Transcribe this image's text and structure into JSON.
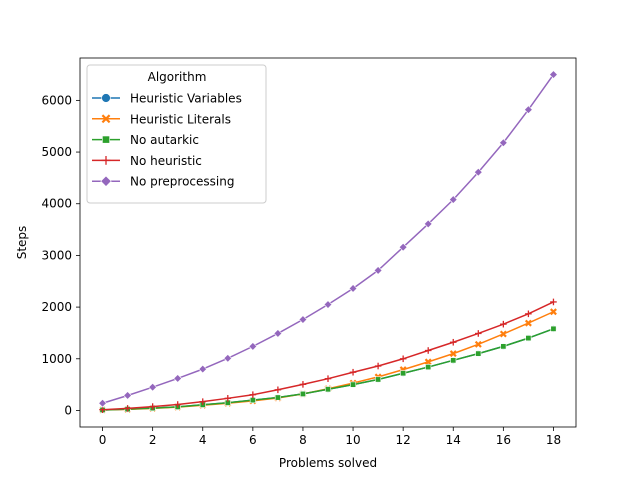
{
  "chart_data": {
    "type": "line",
    "title": "",
    "xlabel": "Problems solved",
    "ylabel": "Steps",
    "xlim": [
      -0.9,
      18.9
    ],
    "ylim": [
      -320,
      6820
    ],
    "xticks": [
      0,
      2,
      4,
      6,
      8,
      10,
      12,
      14,
      16,
      18
    ],
    "yticks": [
      0,
      1000,
      2000,
      3000,
      4000,
      5000,
      6000
    ],
    "grid": false,
    "legend": {
      "title": "Algorithm",
      "placement": "top-left"
    },
    "x": [
      0,
      1,
      2,
      3,
      4,
      5,
      6,
      7,
      8,
      9,
      10,
      11,
      12,
      13,
      14,
      15,
      16,
      17,
      18
    ],
    "series": [
      {
        "name": "Heuristic Variables",
        "color": "#1f77b4",
        "marker": "circle",
        "values": [
          10,
          25,
          45,
          70,
          110,
          150,
          200,
          250,
          320,
          410,
          500,
          600,
          720,
          840,
          970,
          1100,
          1240,
          1400,
          1580
        ]
      },
      {
        "name": "Heuristic Literals",
        "color": "#ff7f0e",
        "marker": "x",
        "values": [
          10,
          20,
          40,
          65,
          100,
          140,
          185,
          240,
          320,
          420,
          530,
          650,
          790,
          940,
          1100,
          1280,
          1480,
          1690,
          1910
        ]
      },
      {
        "name": "No autarkic",
        "color": "#2ca02c",
        "marker": "square",
        "values": [
          10,
          25,
          45,
          70,
          110,
          150,
          200,
          250,
          320,
          410,
          500,
          600,
          720,
          840,
          970,
          1100,
          1240,
          1400,
          1580
        ]
      },
      {
        "name": "No heuristic",
        "color": "#d62728",
        "marker": "plus",
        "values": [
          15,
          40,
          75,
          115,
          170,
          235,
          305,
          400,
          505,
          615,
          740,
          860,
          1000,
          1160,
          1320,
          1490,
          1670,
          1870,
          2100
        ]
      },
      {
        "name": "No preprocessing",
        "color": "#9467bd",
        "marker": "diamond",
        "values": [
          140,
          290,
          450,
          620,
          800,
          1010,
          1240,
          1490,
          1760,
          2050,
          2360,
          2710,
          3160,
          3610,
          4080,
          4610,
          5180,
          5820,
          6500
        ]
      }
    ]
  }
}
